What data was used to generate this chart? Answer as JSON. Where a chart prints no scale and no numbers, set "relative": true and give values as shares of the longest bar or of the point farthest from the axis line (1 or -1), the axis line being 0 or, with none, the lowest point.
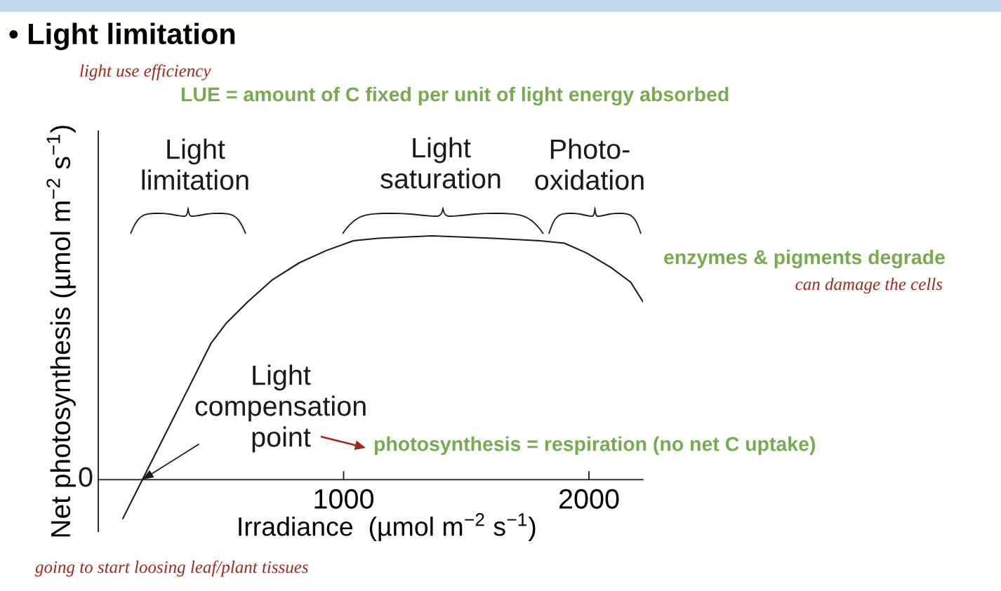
{
  "chart_data": {
    "type": "line",
    "title": "• Light limitation",
    "xlabel": "Irradiance  (µmol m$^{−2}$ s$^{−1}$)",
    "ylabel": "Net photosynthesis (µmol m$^{−2}$ s$^{−1}$)",
    "x": [
      100,
      180,
      290,
      460,
      520,
      610,
      710,
      820,
      930,
      1040,
      1140,
      1360,
      1610,
      1800,
      1900,
      1990,
      2090,
      2170,
      2220
    ],
    "series": [
      {
        "color": "#1a1a1a",
        "values": [
          -0.16,
          0,
          0.22,
          0.56,
          0.64,
          0.73,
          0.82,
          0.89,
          0.94,
          0.98,
          0.99,
          1,
          0.99,
          0.98,
          0.97,
          0.93,
          0.87,
          0.81,
          0.73
        ]
      }
    ],
    "relative": true,
    "xlim": [
      0,
      2220
    ],
    "xticks": [
      1000,
      2000
    ],
    "annotations": [
      "Light\nlimitation",
      "Light\nsaturation",
      "Photo-\noxidation",
      {
        "text": "Light\ncompensation\npoint",
        "x": 180,
        "y": 0
      },
      "photosynthesis = respiration (no net C uptake)",
      "LUE = amount of C fixed per unit of light energy absorbed",
      "light use efficiency",
      "enzymes & pigments degrade",
      "can damage the cells",
      "going to start loosing leaf/plant tissues",
      "0"
    ]
  }
}
